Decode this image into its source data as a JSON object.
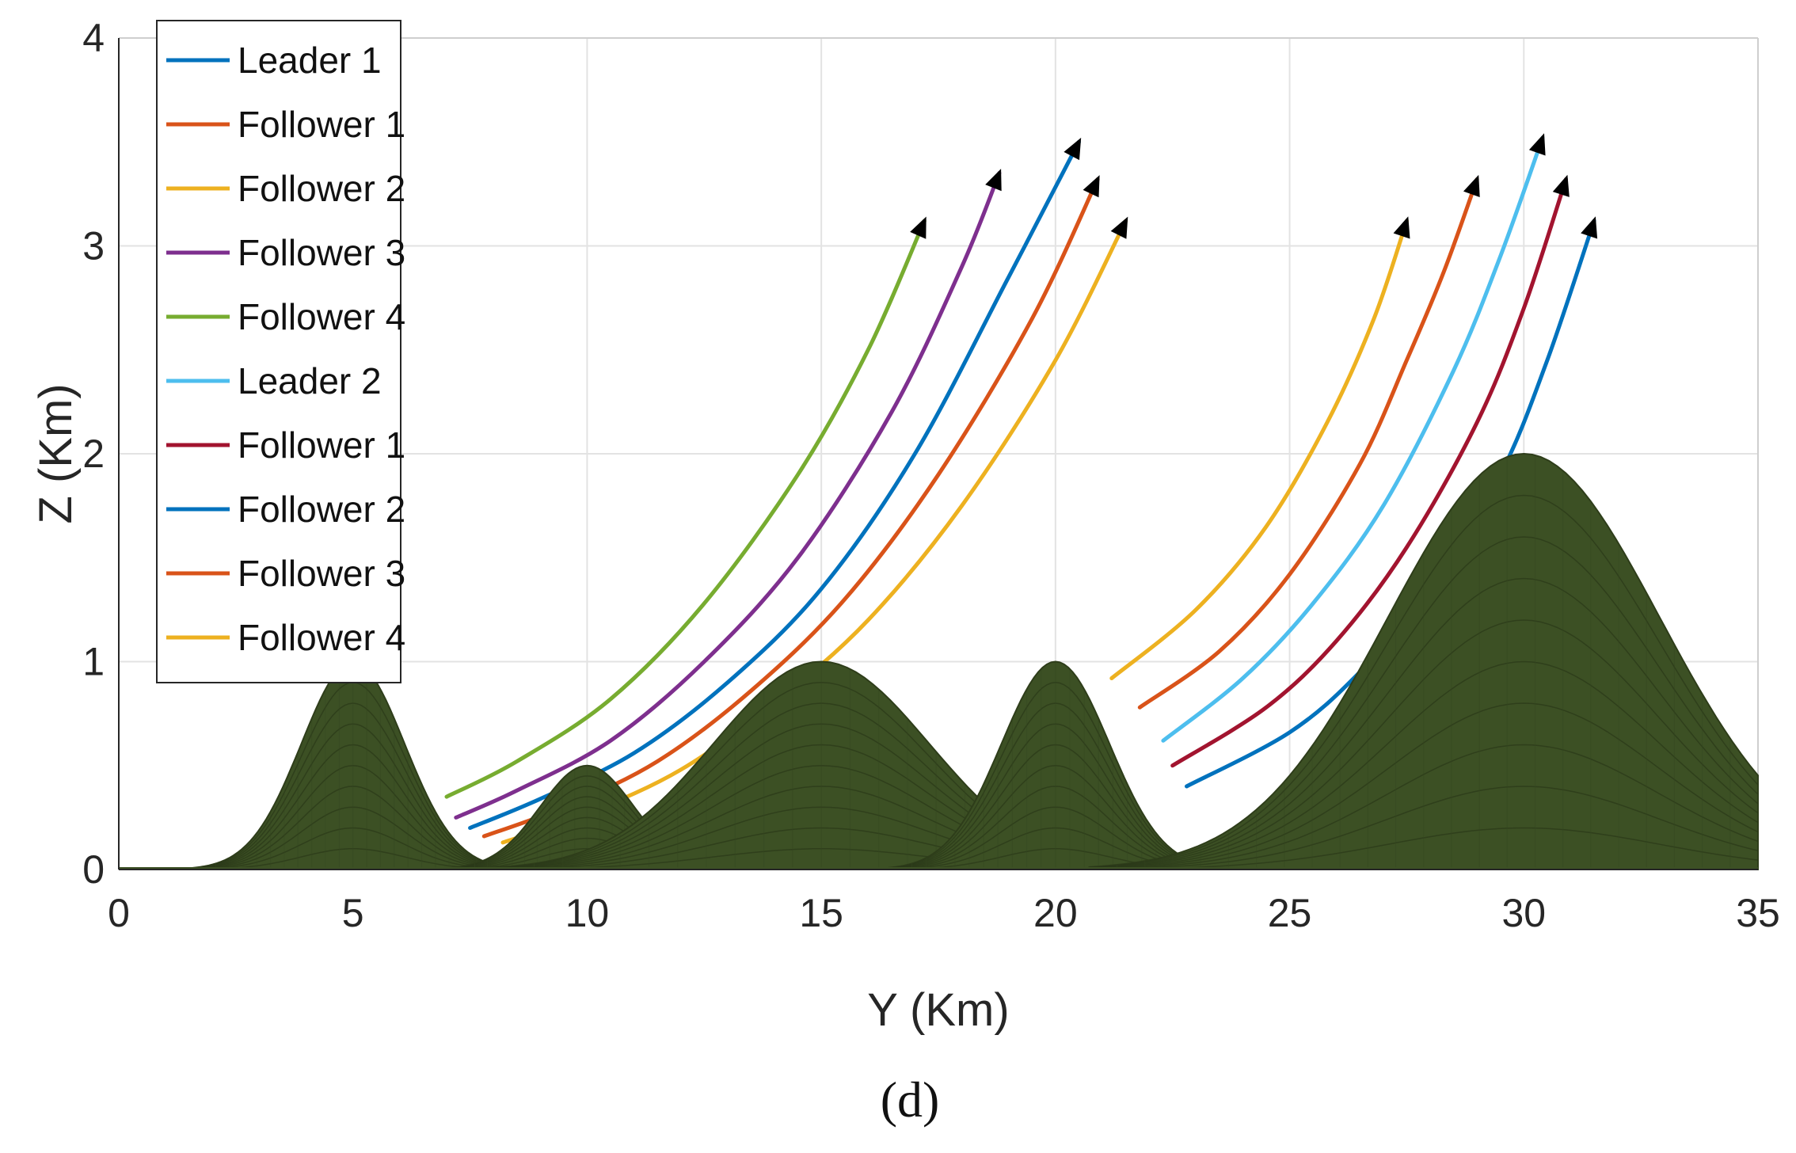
{
  "chart_data": {
    "type": "line",
    "caption": "(d)",
    "xlabel": "Y (Km)",
    "ylabel": "Z (Km)",
    "xlim": [
      0,
      35
    ],
    "ylim": [
      0,
      4
    ],
    "xticks": [
      "0",
      "5",
      "10",
      "15",
      "20",
      "25",
      "30",
      "35"
    ],
    "yticks": [
      "0",
      "1",
      "2",
      "3",
      "4"
    ],
    "grid": true,
    "legend_position": "top-left",
    "terrain": {
      "color": "#3c5024",
      "peaks": [
        {
          "center_y": 5,
          "height": 1.0
        },
        {
          "center_y": 10,
          "height": 0.5
        },
        {
          "center_y": 15,
          "height": 1.0
        },
        {
          "center_y": 20,
          "height": 1.0
        },
        {
          "center_y": 30,
          "height": 2.0
        }
      ]
    },
    "series": [
      {
        "name": "Leader 1",
        "color": "#0072bd",
        "x": [
          7.5,
          9.0,
          11.0,
          13.0,
          15.0,
          17.0,
          19.0,
          20.5
        ],
        "y": [
          0.2,
          0.34,
          0.56,
          0.9,
          1.35,
          2.0,
          2.85,
          3.5
        ]
      },
      {
        "name": "Follower 1",
        "color": "#d95319",
        "x": [
          7.8,
          9.5,
          11.5,
          13.5,
          15.5,
          17.5,
          19.5,
          20.9
        ],
        "y": [
          0.16,
          0.3,
          0.52,
          0.86,
          1.3,
          1.9,
          2.65,
          3.32
        ]
      },
      {
        "name": "Follower 2",
        "color": "#edb120",
        "x": [
          8.2,
          10.0,
          12.0,
          14.0,
          16.0,
          18.0,
          20.0,
          21.5
        ],
        "y": [
          0.13,
          0.27,
          0.48,
          0.8,
          1.2,
          1.75,
          2.45,
          3.12
        ]
      },
      {
        "name": "Follower 3",
        "color": "#7e2f8e",
        "x": [
          7.2,
          8.5,
          10.5,
          12.5,
          14.5,
          16.5,
          18.0,
          18.8
        ],
        "y": [
          0.25,
          0.38,
          0.62,
          1.0,
          1.5,
          2.2,
          2.9,
          3.35
        ]
      },
      {
        "name": "Follower 4",
        "color": "#77ac30",
        "x": [
          7.0,
          8.5,
          10.5,
          12.5,
          14.5,
          16.0,
          17.2
        ],
        "y": [
          0.35,
          0.52,
          0.82,
          1.28,
          1.9,
          2.5,
          3.12
        ]
      },
      {
        "name": "Leader 2",
        "color": "#4dbeee",
        "x": [
          22.3,
          24.0,
          25.5,
          27.0,
          28.5,
          29.5,
          30.4
        ],
        "y": [
          0.62,
          0.92,
          1.28,
          1.75,
          2.4,
          2.95,
          3.52
        ]
      },
      {
        "name": "Follower 1",
        "color": "#a2142f",
        "x": [
          22.5,
          24.5,
          26.0,
          27.5,
          29.0,
          30.0,
          30.9
        ],
        "y": [
          0.5,
          0.78,
          1.1,
          1.55,
          2.15,
          2.7,
          3.32
        ]
      },
      {
        "name": "Follower 2",
        "color": "#0072bd",
        "x": [
          22.8,
          25.0,
          26.5,
          28.0,
          29.5,
          30.5,
          31.5
        ],
        "y": [
          0.4,
          0.66,
          0.95,
          1.35,
          1.9,
          2.45,
          3.12
        ]
      },
      {
        "name": "Follower 3",
        "color": "#d95319",
        "x": [
          21.8,
          23.5,
          25.0,
          26.5,
          27.5,
          28.3,
          29.0
        ],
        "y": [
          0.78,
          1.05,
          1.42,
          1.95,
          2.45,
          2.88,
          3.32
        ]
      },
      {
        "name": "Follower 4",
        "color": "#edb120",
        "x": [
          21.2,
          23.0,
          24.5,
          25.8,
          26.8,
          27.5
        ],
        "y": [
          0.92,
          1.25,
          1.65,
          2.15,
          2.65,
          3.12
        ]
      }
    ]
  }
}
